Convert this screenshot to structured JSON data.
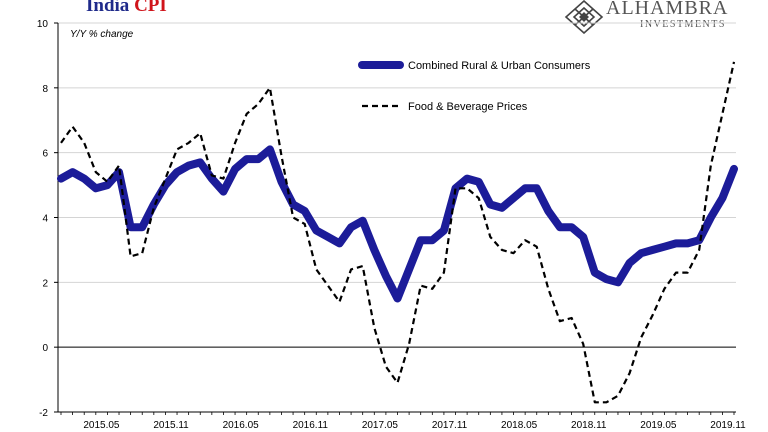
{
  "header": {
    "title_part1": "India",
    "title_part2": "CPI",
    "units_note": "Y/Y % change"
  },
  "logo": {
    "name": "ALHAMBRA",
    "subtitle": "INVESTMENTS",
    "icon": "diamond-lattice-icon"
  },
  "colors": {
    "combined": "#1c1c99",
    "food": "#000000",
    "title_india": "#1f2a8a",
    "title_cpi": "#d0141b"
  },
  "chart_data": {
    "type": "line",
    "title": "India CPI",
    "subtitle": "Y/Y % change",
    "ylim": [
      -2,
      10
    ],
    "yticks": [
      -2,
      0,
      2,
      4,
      6,
      8,
      10
    ],
    "grid": "horizontal",
    "legend_position": "top-right",
    "x_tick_labels": [
      "2015.05",
      "2015.11",
      "2016.05",
      "2016.11",
      "2017.05",
      "2017.11",
      "2018.05",
      "2018.11",
      "2019.05",
      "2019.11"
    ],
    "x_start": "2015.01",
    "x_end": "2019.11",
    "series": [
      {
        "name": "Combined Rural & Urban Consumers",
        "style": "solid-thick",
        "values": [
          5.2,
          5.4,
          5.2,
          4.9,
          5.0,
          5.4,
          3.7,
          3.7,
          4.4,
          5.0,
          5.4,
          5.6,
          5.7,
          5.2,
          4.8,
          5.5,
          5.8,
          5.8,
          6.1,
          5.1,
          4.4,
          4.2,
          3.6,
          3.4,
          3.2,
          3.7,
          3.9,
          3.0,
          2.2,
          1.5,
          2.4,
          3.3,
          3.3,
          3.6,
          4.9,
          5.2,
          5.1,
          4.4,
          4.3,
          4.6,
          4.9,
          4.9,
          4.2,
          3.7,
          3.7,
          3.4,
          2.3,
          2.1,
          2.0,
          2.6,
          2.9,
          3.0,
          3.1,
          3.2,
          3.2,
          3.3,
          4.0,
          4.6,
          5.5
        ]
      },
      {
        "name": "Food & Beverage Prices",
        "style": "dashed",
        "values": [
          6.3,
          6.8,
          6.3,
          5.4,
          5.1,
          5.6,
          2.8,
          2.9,
          4.3,
          5.2,
          6.1,
          6.3,
          6.6,
          5.3,
          5.2,
          6.3,
          7.2,
          7.5,
          8.0,
          5.9,
          4.0,
          3.8,
          2.4,
          1.9,
          1.4,
          2.4,
          2.5,
          0.6,
          -0.6,
          -1.1,
          0.1,
          1.9,
          1.8,
          2.3,
          4.9,
          4.9,
          4.6,
          3.4,
          3.0,
          2.9,
          3.3,
          3.1,
          1.8,
          0.8,
          0.9,
          0.1,
          -1.7,
          -1.7,
          -1.5,
          -0.8,
          0.3,
          1.0,
          1.8,
          2.3,
          2.3,
          3.0,
          5.6,
          7.2,
          8.8
        ]
      }
    ]
  }
}
